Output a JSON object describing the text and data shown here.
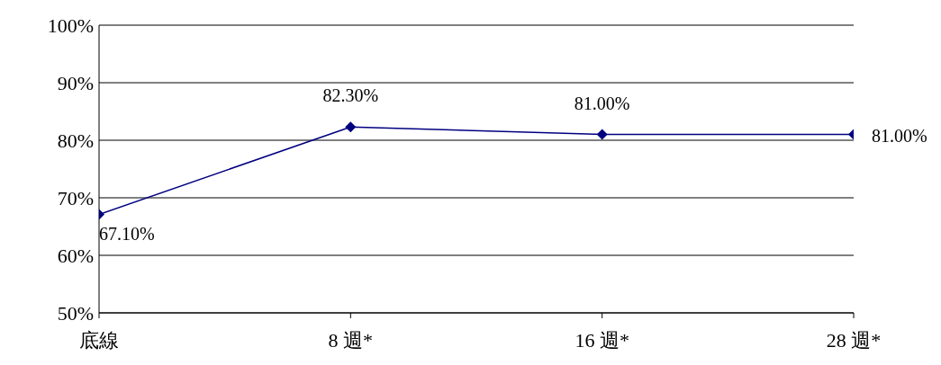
{
  "chart_data": {
    "type": "line",
    "categories": [
      "底線",
      "8 週*",
      "16 週*",
      "28 週*"
    ],
    "series": [
      {
        "color": "#000080",
        "values": [
          67.1,
          82.3,
          81,
          81
        ],
        "value_labels": [
          "67.10%",
          "82.30%",
          "81.00%",
          "81.00%"
        ]
      }
    ],
    "ylim": [
      50,
      100
    ],
    "yticks": [
      {
        "value": 50,
        "label": "50%"
      },
      {
        "value": 60,
        "label": "60%"
      },
      {
        "value": 70,
        "label": "70%"
      },
      {
        "value": 80,
        "label": "80%"
      },
      {
        "value": 90,
        "label": "90%"
      },
      {
        "value": 100,
        "label": "100%"
      }
    ],
    "grid": "y",
    "marker": "diamond",
    "line_style": "solid",
    "legend": false
  }
}
